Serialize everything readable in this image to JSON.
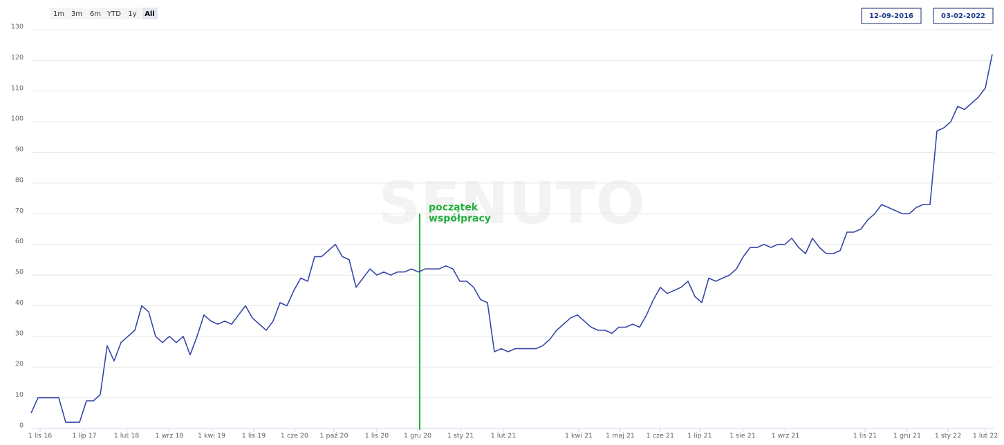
{
  "controls": {
    "buttons": [
      "1m",
      "3m",
      "6m",
      "YTD",
      "1y",
      "All"
    ],
    "selected": 5,
    "from": "12-09-2016",
    "to": "03-02-2022"
  },
  "watermark": "SENUTO",
  "chart_data": {
    "type": "line",
    "color": "#3545a8",
    "grid": true,
    "x": [
      0,
      1,
      2,
      3,
      4,
      5,
      6,
      7,
      8,
      9,
      10,
      11,
      12,
      13,
      14,
      15,
      16,
      17,
      18,
      19,
      20,
      21,
      22,
      23,
      24,
      25,
      26,
      27,
      28,
      29,
      30,
      31,
      32,
      33,
      34,
      35,
      36,
      37,
      38,
      39,
      40,
      41,
      42,
      43,
      44,
      45,
      46,
      47,
      48,
      49,
      50,
      51,
      52,
      53,
      54,
      55,
      56,
      57,
      58,
      59,
      60,
      61,
      62,
      63,
      64,
      65,
      66,
      67,
      68,
      69,
      70,
      71,
      72,
      73,
      74,
      75,
      76,
      77,
      78,
      79,
      80,
      81,
      82,
      83,
      84,
      85,
      86,
      87,
      88,
      89,
      90,
      91,
      92,
      93,
      94,
      95,
      96,
      97,
      98,
      99,
      100,
      101,
      102,
      103,
      104,
      105,
      106,
      107,
      108,
      109,
      110,
      111,
      112,
      113,
      114,
      115,
      116,
      117,
      118,
      119,
      120,
      121,
      122,
      123,
      124,
      125,
      126,
      127,
      128,
      129,
      130,
      131,
      132,
      133,
      134,
      135,
      136,
      137,
      138,
      139
    ],
    "values": [
      5,
      10,
      10,
      10,
      10,
      2,
      2,
      2,
      9,
      9,
      11,
      27,
      22,
      28,
      30,
      32,
      40,
      38,
      30,
      28,
      30,
      28,
      30,
      24,
      30,
      37,
      35,
      34,
      35,
      34,
      37,
      40,
      36,
      34,
      32,
      35,
      41,
      40,
      45,
      49,
      48,
      56,
      56,
      58,
      60,
      56,
      55,
      46,
      49,
      52,
      50,
      51,
      50,
      51,
      51,
      52,
      51,
      52,
      52,
      52,
      53,
      52,
      48,
      48,
      46,
      42,
      41,
      25,
      26,
      25,
      26,
      26,
      26,
      26,
      27,
      29,
      32,
      34,
      36,
      37,
      35,
      33,
      32,
      32,
      31,
      33,
      33,
      34,
      33,
      37,
      42,
      46,
      44,
      45,
      46,
      48,
      43,
      41,
      49,
      48,
      49,
      50,
      52,
      56,
      59,
      59,
      60,
      59,
      60,
      60,
      62,
      59,
      57,
      62,
      59,
      57,
      57,
      58,
      64,
      64,
      65,
      68,
      70,
      73,
      72,
      71,
      70,
      70,
      72,
      73,
      73,
      97,
      98,
      100,
      105,
      104,
      106,
      108,
      111,
      122
    ],
    "xlim": [
      0,
      139.2
    ],
    "xticks": [
      {
        "value": 1.3,
        "label": "1 lis 16"
      },
      {
        "value": 7.7,
        "label": "1 lip 17"
      },
      {
        "value": 13.8,
        "label": "1 lut 18"
      },
      {
        "value": 20,
        "label": "1 wrz 18"
      },
      {
        "value": 26.1,
        "label": "1 kwi 19"
      },
      {
        "value": 32.2,
        "label": "1 lis 19"
      },
      {
        "value": 38.1,
        "label": "1 cze 20"
      },
      {
        "value": 43.8,
        "label": "1 paź 20"
      },
      {
        "value": 50,
        "label": "1 lis 20"
      },
      {
        "value": 55.9,
        "label": "1 gru 20"
      },
      {
        "value": 62.1,
        "label": "1 sty 21"
      },
      {
        "value": 68.3,
        "label": "1 lut 21"
      },
      {
        "value": 79.2,
        "label": "1 kwi 21"
      },
      {
        "value": 85.2,
        "label": "1 maj 21"
      },
      {
        "value": 91,
        "label": "1 cze 21"
      },
      {
        "value": 96.7,
        "label": "1 lip 21"
      },
      {
        "value": 102.9,
        "label": "1 sie 21"
      },
      {
        "value": 109.1,
        "label": "1 wrz 21"
      },
      {
        "value": 120.6,
        "label": "1 lis 21"
      },
      {
        "value": 126.7,
        "label": "1 gru 21"
      },
      {
        "value": 132.6,
        "label": "1 sty 22"
      },
      {
        "value": 138,
        "label": "1 lut 22"
      }
    ],
    "ylim": [
      0,
      130
    ],
    "yticks": [
      0,
      10,
      20,
      30,
      40,
      50,
      60,
      70,
      80,
      90,
      100,
      110,
      120,
      130
    ],
    "annotations": [
      {
        "text": [
          "początek",
          "współpracy"
        ],
        "x": 56.2,
        "y": 70,
        "color": "#22b03c"
      }
    ]
  }
}
